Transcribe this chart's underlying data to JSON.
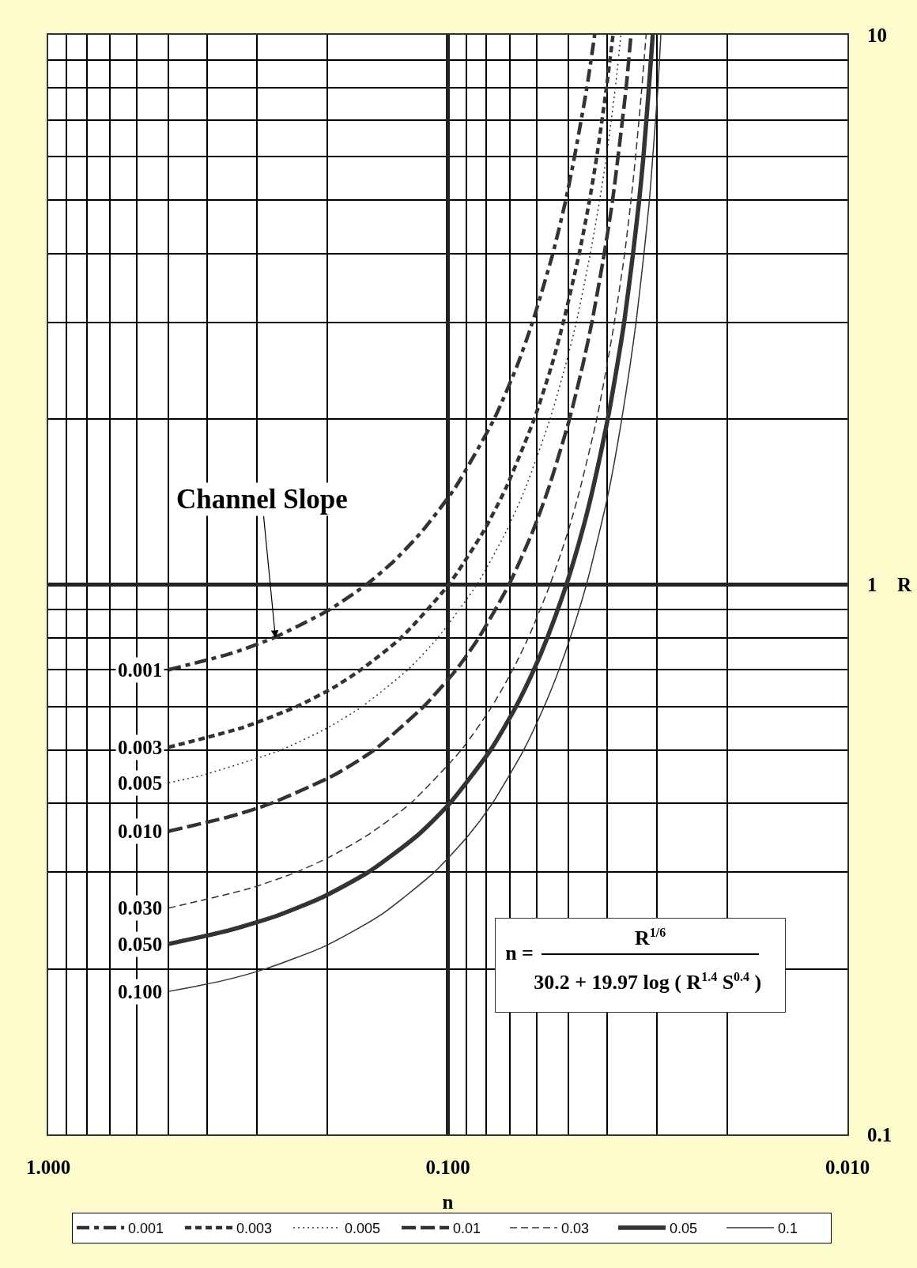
{
  "chart_data": {
    "type": "line",
    "xlabel": "n",
    "ylabel": "R",
    "log": "xy",
    "grid": true,
    "legend": "bottom",
    "xlim": [
      1,
      0.01
    ],
    "ylim": [
      0.1,
      10
    ],
    "xticks": [
      {
        "value": 1,
        "label": "1.000"
      },
      {
        "value": 0.9,
        "label": null
      },
      {
        "value": 0.8,
        "label": null
      },
      {
        "value": 0.7,
        "label": null
      },
      {
        "value": 0.6,
        "label": null
      },
      {
        "value": 0.5,
        "label": null
      },
      {
        "value": 0.4,
        "label": null
      },
      {
        "value": 0.3,
        "label": null
      },
      {
        "value": 0.2,
        "label": null
      },
      {
        "value": 0.1,
        "label": "0.100"
      },
      {
        "value": 0.09,
        "label": null
      },
      {
        "value": 0.08,
        "label": null
      },
      {
        "value": 0.07,
        "label": null
      },
      {
        "value": 0.06,
        "label": null
      },
      {
        "value": 0.05,
        "label": null
      },
      {
        "value": 0.04,
        "label": null
      },
      {
        "value": 0.03,
        "label": null
      },
      {
        "value": 0.02,
        "label": null
      },
      {
        "value": 0.01,
        "label": "0.010"
      }
    ],
    "yticks": [
      0.1,
      {
        "value": 0.2,
        "label": null
      },
      {
        "value": 0.3,
        "label": null
      },
      {
        "value": 0.4,
        "label": null
      },
      {
        "value": 0.5,
        "label": null
      },
      {
        "value": 0.6,
        "label": null
      },
      {
        "value": 0.7,
        "label": null
      },
      {
        "value": 0.8,
        "label": null
      },
      {
        "value": 0.9,
        "label": null
      },
      1,
      {
        "value": 2,
        "label": null
      },
      {
        "value": 3,
        "label": null
      },
      {
        "value": 4,
        "label": null
      },
      {
        "value": 5,
        "label": null
      },
      {
        "value": 6,
        "label": null
      },
      {
        "value": 7,
        "label": null
      },
      {
        "value": 8,
        "label": null
      },
      {
        "value": 9,
        "label": null
      },
      10
    ],
    "series": [
      {
        "name": "0.001",
        "color": "#333333",
        "line_style": "dashed",
        "x": [
          0.5,
          0.348,
          0.273,
          0.198,
          0.16,
          0.137,
          0.116,
          0.0959,
          0.0766,
          0.0671,
          0.0614,
          0.0546,
          0.0507,
          0.0482,
          0.0449,
          0.0429
        ],
        "values": [
          0.7,
          0.75,
          0.8,
          0.9,
          1,
          1.1,
          1.25,
          1.5,
          2,
          2.5,
          3,
          4,
          5,
          6,
          8,
          10
        ]
      },
      {
        "name": "0.003",
        "color": "#333333",
        "line_style": "dashed",
        "x": [
          0.5,
          0.325,
          0.239,
          0.193,
          0.165,
          0.131,
          0.0995,
          0.0814,
          0.0715,
          0.0608,
          0.055,
          0.0514,
          0.0469,
          0.0442,
          0.0424,
          0.0401,
          0.0386
        ],
        "values": [
          0.506,
          0.55,
          0.6,
          0.65,
          0.7,
          0.8,
          1,
          1.25,
          1.5,
          2,
          2.5,
          3,
          4,
          5,
          6,
          8,
          10
        ]
      },
      {
        "name": "0.005",
        "color": "#333333",
        "line_style": "dotted",
        "x": [
          0.5,
          0.412,
          0.262,
          0.199,
          0.164,
          0.126,
          0.106,
          0.0846,
          0.0714,
          0.0639,
          0.0555,
          0.0508,
          0.0477,
          0.044,
          0.0417,
          0.0401,
          0.0381,
          0.0369
        ],
        "values": [
          0.436,
          0.45,
          0.5,
          0.55,
          0.6,
          0.7,
          0.8,
          1,
          1.25,
          1.5,
          2,
          2.5,
          3,
          4,
          5,
          6,
          8,
          10
        ]
      },
      {
        "name": "0.01",
        "color": "#333333",
        "line_style": "dashed",
        "x": [
          0.5,
          0.344,
          0.277,
          0.193,
          0.153,
          0.115,
          0.0953,
          0.0837,
          0.0703,
          0.0613,
          0.0559,
          0.0496,
          0.046,
          0.0436,
          0.0406,
          0.0387,
          0.0375,
          0.0358,
          0.0348
        ],
        "values": [
          0.356,
          0.38,
          0.4,
          0.45,
          0.5,
          0.6,
          0.7,
          0.8,
          1,
          1.25,
          1.5,
          2,
          2.5,
          3,
          4,
          5,
          6,
          8,
          10
        ]
      },
      {
        "name": "0.03",
        "color": "#333333",
        "line_style": "dashed",
        "x": [
          0.5,
          0.314,
          0.239,
          0.197,
          0.159,
          0.124,
          0.0926,
          0.0776,
          0.0688,
          0.0629,
          0.0555,
          0.05,
          0.0466,
          0.0424,
          0.04,
          0.0383,
          0.0361,
          0.0348,
          0.0339,
          0.0327,
          0.0319
        ],
        "values": [
          0.258,
          0.28,
          0.3,
          0.32,
          0.35,
          0.4,
          0.5,
          0.6,
          0.7,
          0.8,
          1,
          1.25,
          1.5,
          2,
          2.5,
          3,
          4,
          5,
          6,
          8,
          10
        ]
      },
      {
        "name": "0.05",
        "color": "#333333",
        "line_style": "solid",
        "x": [
          0.5,
          0.353,
          0.267,
          0.206,
          0.158,
          0.119,
          0.0989,
          0.0782,
          0.0675,
          0.0609,
          0.0564,
          0.0505,
          0.0461,
          0.0433,
          0.0398,
          0.0377,
          0.0362,
          0.0344,
          0.0332,
          0.0324,
          0.0314,
          0.0307
        ],
        "values": [
          0.222,
          0.235,
          0.25,
          0.27,
          0.3,
          0.35,
          0.4,
          0.5,
          0.6,
          0.7,
          0.8,
          1,
          1.25,
          1.5,
          2,
          2.5,
          3,
          4,
          5,
          6,
          8,
          10
        ]
      },
      {
        "name": "0.1",
        "color": "#333333",
        "line_style": "solid",
        "x": [
          0.5,
          0.37,
          0.286,
          0.203,
          0.148,
          0.108,
          0.0887,
          0.0774,
          0.0646,
          0.0574,
          0.0527,
          0.0494,
          0.045,
          0.0417,
          0.0394,
          0.0367,
          0.035,
          0.0338,
          0.0323,
          0.0313,
          0.0307,
          0.0298,
          0.0293
        ],
        "values": [
          0.182,
          0.19,
          0.2,
          0.22,
          0.25,
          0.3,
          0.35,
          0.4,
          0.5,
          0.6,
          0.7,
          0.8,
          1,
          1.25,
          1.5,
          2,
          2.5,
          3,
          4,
          5,
          6,
          8,
          10
        ]
      }
    ],
    "annotations": [
      {
        "text": "Channel Slope",
        "x": 0.27,
        "y": 0.8
      },
      "0.001",
      "0.003",
      "0.005",
      "0.010",
      "0.030",
      "0.050",
      "0.100",
      "n =",
      "R$^{1/6}$",
      "30.2 + 19.97 log ( R$^{1.4}$ S$^{0.4}$ )"
    ]
  }
}
